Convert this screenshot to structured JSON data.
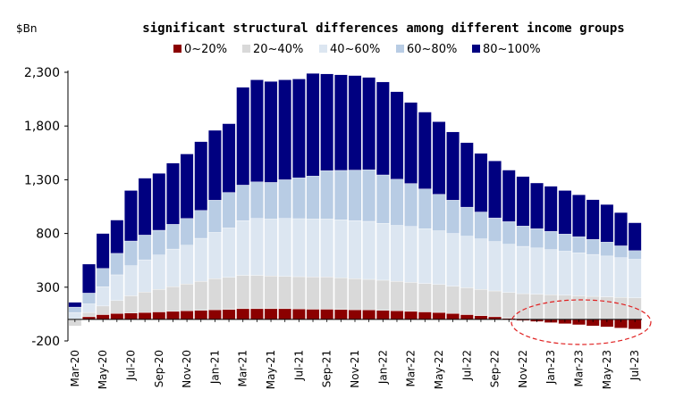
{
  "chart_data": {
    "type": "bar",
    "stacked": true,
    "title": "significant structural differences among different income groups",
    "unit_label": "$Bn",
    "xlabel": "",
    "ylabel": "",
    "ylim": [
      -200,
      2300
    ],
    "yticks": [
      -200,
      300,
      800,
      1300,
      1800,
      2300
    ],
    "ytick_labels": [
      "-200",
      "300",
      "800",
      "1,300",
      "1,800",
      "2,300"
    ],
    "grid": false,
    "legend_position": "top",
    "categories": [
      "Mar-20",
      "Apr-20",
      "May-20",
      "Jun-20",
      "Jul-20",
      "Aug-20",
      "Sep-20",
      "Oct-20",
      "Nov-20",
      "Dec-20",
      "Jan-21",
      "Feb-21",
      "Mar-21",
      "Apr-21",
      "May-21",
      "Jun-21",
      "Jul-21",
      "Aug-21",
      "Sep-21",
      "Oct-21",
      "Nov-21",
      "Dec-21",
      "Jan-22",
      "Feb-22",
      "Mar-22",
      "Apr-22",
      "May-22",
      "Jun-22",
      "Jul-22",
      "Aug-22",
      "Sep-22",
      "Oct-22",
      "Nov-22",
      "Dec-22",
      "Jan-23",
      "Feb-23",
      "Mar-23",
      "Apr-23",
      "May-23",
      "Jun-23",
      "Jul-23"
    ],
    "xtick_labels": [
      "Mar-20",
      "May-20",
      "Jul-20",
      "Sep-20",
      "Nov-20",
      "Jan-21",
      "Mar-21",
      "May-21",
      "Jul-21",
      "Sep-21",
      "Nov-21",
      "Jan-22",
      "Mar-22",
      "May-22",
      "Jul-22",
      "Sep-22",
      "Nov-22",
      "Jan-23",
      "Mar-23",
      "May-23",
      "Jul-23"
    ],
    "series": [
      {
        "name": "0~20%",
        "color": "#8b0000",
        "values": [
          5,
          25,
          45,
          55,
          60,
          65,
          70,
          75,
          80,
          85,
          90,
          92,
          100,
          100,
          100,
          100,
          98,
          95,
          95,
          92,
          90,
          88,
          85,
          80,
          75,
          70,
          65,
          55,
          45,
          35,
          25,
          10,
          -10,
          -20,
          -30,
          -40,
          -50,
          -60,
          -70,
          -80,
          -90
        ]
      },
      {
        "name": "20~40%",
        "color": "#d9d9d9",
        "values": [
          -60,
          40,
          80,
          120,
          160,
          190,
          210,
          230,
          250,
          270,
          290,
          300,
          310,
          310,
          305,
          300,
          300,
          300,
          300,
          295,
          290,
          285,
          280,
          275,
          270,
          265,
          260,
          255,
          250,
          245,
          240,
          240,
          240,
          235,
          230,
          225,
          220,
          215,
          210,
          205,
          200
        ]
      },
      {
        "name": "40~60%",
        "color": "#dce6f1",
        "values": [
          60,
          80,
          180,
          240,
          280,
          300,
          320,
          350,
          360,
          400,
          430,
          460,
          510,
          530,
          530,
          540,
          540,
          540,
          540,
          540,
          540,
          540,
          530,
          520,
          520,
          510,
          500,
          490,
          480,
          470,
          460,
          450,
          440,
          430,
          420,
          410,
          400,
          390,
          380,
          370,
          360
        ]
      },
      {
        "name": "60~80%",
        "color": "#b8cce4",
        "values": [
          50,
          100,
          170,
          200,
          230,
          230,
          230,
          230,
          250,
          260,
          300,
          330,
          330,
          340,
          340,
          360,
          380,
          400,
          450,
          460,
          470,
          480,
          450,
          430,
          400,
          370,
          340,
          310,
          270,
          250,
          220,
          210,
          190,
          180,
          170,
          160,
          150,
          140,
          130,
          110,
          80
        ]
      },
      {
        "name": "80~100%",
        "color": "#000080",
        "values": [
          45,
          270,
          325,
          310,
          470,
          530,
          530,
          570,
          600,
          640,
          650,
          640,
          910,
          950,
          940,
          930,
          920,
          955,
          900,
          890,
          880,
          860,
          865,
          815,
          755,
          715,
          675,
          635,
          600,
          545,
          530,
          480,
          460,
          425,
          420,
          405,
          390,
          370,
          350,
          310,
          260
        ]
      }
    ]
  }
}
